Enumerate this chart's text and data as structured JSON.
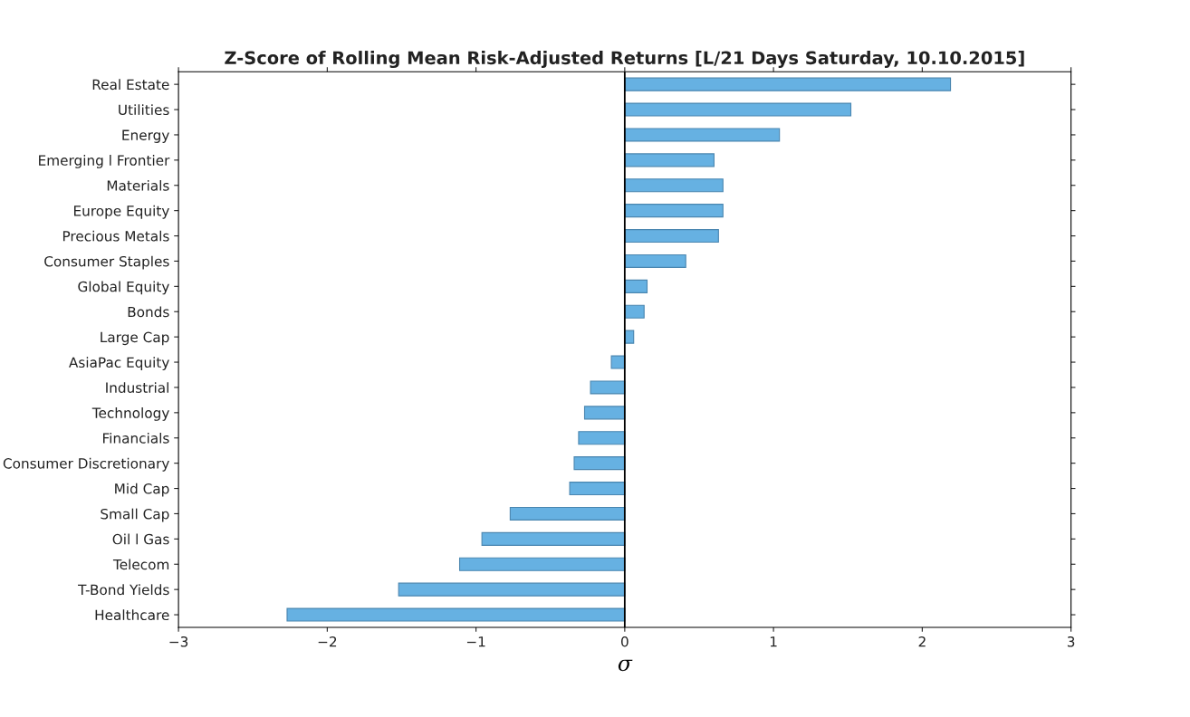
{
  "chart_data": {
    "type": "bar",
    "orientation": "horizontal",
    "title": "Z-Score of Rolling Mean Risk-Adjusted Returns [L/21 Days Saturday, 10.10.2015]",
    "xlabel": "σ",
    "categories": [
      "Real Estate",
      "Utilities",
      "Energy",
      "Emerging l Frontier",
      "Materials",
      "Europe Equity",
      "Precious Metals",
      "Consumer Staples",
      "Global Equity",
      "Bonds",
      "Large Cap",
      "AsiaPac Equity",
      "Industrial",
      "Technology",
      "Financials",
      "Consumer Discretionary",
      "Mid Cap",
      "Small Cap",
      "Oil l Gas",
      "Telecom",
      "T-Bond Yields",
      "Healthcare"
    ],
    "values": [
      2.19,
      1.52,
      1.04,
      0.6,
      0.66,
      0.66,
      0.63,
      0.41,
      0.15,
      0.13,
      0.06,
      -0.09,
      -0.23,
      -0.27,
      -0.31,
      -0.34,
      -0.37,
      -0.77,
      -0.96,
      -1.11,
      -1.52,
      -2.27
    ],
    "color": "#66b1e2",
    "xlim": [
      -3,
      3
    ],
    "xticks": [
      {
        "value": -3,
        "label": "−3"
      },
      {
        "value": -2,
        "label": "−2"
      },
      {
        "value": -1,
        "label": "−1"
      },
      0,
      1,
      2,
      3
    ],
    "ref_lines": [
      {
        "axis": "x",
        "value": 0,
        "color": "#000000"
      }
    ],
    "grid": false
  }
}
